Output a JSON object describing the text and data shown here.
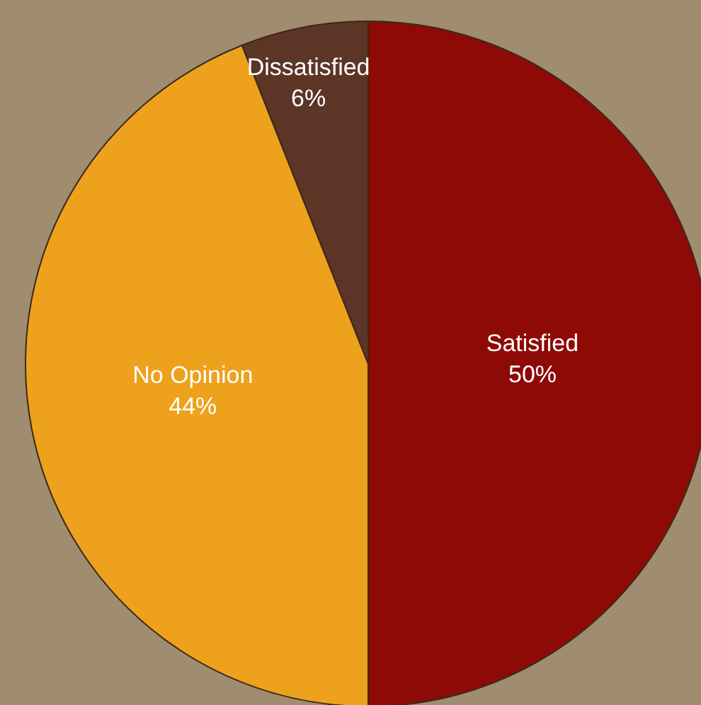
{
  "chart_data": {
    "type": "pie",
    "categories": [
      "Satisfied",
      "No Opinion",
      "Dissatisfied"
    ],
    "values": [
      50,
      44,
      6
    ],
    "colors": [
      "#8e0a07",
      "#eea11c",
      "#5c3527"
    ],
    "value_labels": [
      "50%",
      "44%",
      "6%"
    ]
  }
}
